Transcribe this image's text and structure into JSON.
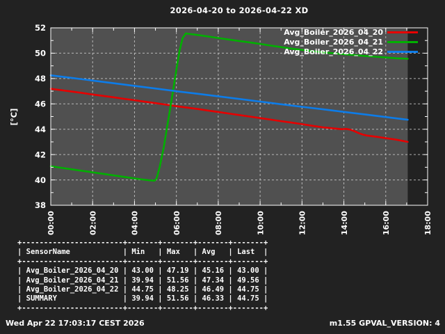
{
  "title": "2026-04-20 to 2026-04-22 XD",
  "colors": {
    "page_bg": "#222222",
    "plot_bg": "#505050",
    "grid": "#c9c9c9",
    "border": "#ffffff",
    "text": "#ffffff",
    "series_red": "#e60000",
    "series_green": "#00b000",
    "series_blue": "#0d7ce8"
  },
  "chart_data": {
    "type": "line",
    "title": "2026-04-20 to 2026-04-22 XD",
    "xlabel": "",
    "ylabel": "[°C]",
    "x_unit": "hours",
    "xlim": [
      0,
      18
    ],
    "ylim": [
      38,
      52
    ],
    "xtick_labels": [
      "00:00",
      "02:00",
      "04:00",
      "06:00",
      "08:00",
      "10:00",
      "12:00",
      "14:00",
      "16:00",
      "18:00"
    ],
    "xtick_hours": [
      0,
      2,
      4,
      6,
      8,
      10,
      12,
      14,
      16,
      18
    ],
    "yticks": [
      38,
      40,
      42,
      44,
      46,
      48,
      50,
      52
    ],
    "grid": true,
    "legend_position": "top-right",
    "data_end_hour": 17.05,
    "series": [
      {
        "name": "Avg_Boiler_2026_04_20",
        "color": "#e60000",
        "points": [
          [
            0,
            47.19
          ],
          [
            0.5,
            47.08
          ],
          [
            1,
            46.97
          ],
          [
            1.5,
            46.86
          ],
          [
            2,
            46.74
          ],
          [
            2.5,
            46.63
          ],
          [
            3,
            46.52
          ],
          [
            3.5,
            46.4
          ],
          [
            4,
            46.29
          ],
          [
            4.5,
            46.17
          ],
          [
            5,
            46.06
          ],
          [
            5.5,
            45.94
          ],
          [
            6,
            45.82
          ],
          [
            6.5,
            45.71
          ],
          [
            7,
            45.6
          ],
          [
            7.5,
            45.48
          ],
          [
            8,
            45.36
          ],
          [
            8.5,
            45.24
          ],
          [
            9,
            45.12
          ],
          [
            9.5,
            45.0
          ],
          [
            10,
            44.88
          ],
          [
            10.5,
            44.76
          ],
          [
            11,
            44.64
          ],
          [
            11.5,
            44.52
          ],
          [
            12,
            44.4
          ],
          [
            12.5,
            44.27
          ],
          [
            13,
            44.15
          ],
          [
            13.5,
            44.07
          ],
          [
            13.9,
            44.0
          ],
          [
            14.1,
            44.03
          ],
          [
            14.3,
            43.97
          ],
          [
            14.5,
            43.85
          ],
          [
            14.7,
            43.7
          ],
          [
            14.9,
            43.58
          ],
          [
            15.1,
            43.5
          ],
          [
            15.5,
            43.42
          ],
          [
            16,
            43.3
          ],
          [
            16.5,
            43.18
          ],
          [
            17.05,
            43.0
          ]
        ]
      },
      {
        "name": "Avg_Boiler_2026_04_21",
        "color": "#00b000",
        "points": [
          [
            0,
            41.08
          ],
          [
            0.5,
            40.96
          ],
          [
            1,
            40.84
          ],
          [
            1.5,
            40.72
          ],
          [
            2,
            40.6
          ],
          [
            2.5,
            40.48
          ],
          [
            3,
            40.36
          ],
          [
            3.5,
            40.24
          ],
          [
            4,
            40.12
          ],
          [
            4.4,
            40.03
          ],
          [
            4.7,
            39.97
          ],
          [
            4.95,
            39.94
          ],
          [
            5.05,
            40.1
          ],
          [
            5.2,
            41.0
          ],
          [
            5.4,
            42.6
          ],
          [
            5.6,
            44.6
          ],
          [
            5.8,
            46.6
          ],
          [
            6.0,
            48.7
          ],
          [
            6.15,
            50.2
          ],
          [
            6.3,
            51.2
          ],
          [
            6.45,
            51.56
          ],
          [
            6.7,
            51.5
          ],
          [
            7,
            51.44
          ],
          [
            7.5,
            51.32
          ],
          [
            8,
            51.2
          ],
          [
            8.5,
            51.08
          ],
          [
            9,
            50.96
          ],
          [
            9.5,
            50.85
          ],
          [
            10,
            50.73
          ],
          [
            10.5,
            50.6
          ],
          [
            11,
            50.48
          ],
          [
            11.5,
            50.36
          ],
          [
            12,
            50.26
          ],
          [
            12.5,
            50.16
          ],
          [
            13,
            50.07
          ],
          [
            13.5,
            49.99
          ],
          [
            14,
            49.92
          ],
          [
            14.5,
            49.85
          ],
          [
            15,
            49.78
          ],
          [
            15.5,
            49.72
          ],
          [
            16,
            49.66
          ],
          [
            16.5,
            49.6
          ],
          [
            17.05,
            49.56
          ]
        ]
      },
      {
        "name": "Avg_Boiler_2026_04_22",
        "color": "#0d7ce8",
        "points": [
          [
            0,
            48.25
          ],
          [
            1,
            48.05
          ],
          [
            2,
            47.84
          ],
          [
            3,
            47.63
          ],
          [
            4,
            47.42
          ],
          [
            5,
            47.21
          ],
          [
            6,
            47.0
          ],
          [
            7,
            46.8
          ],
          [
            8,
            46.6
          ],
          [
            9,
            46.39
          ],
          [
            10,
            46.18
          ],
          [
            11,
            45.97
          ],
          [
            12,
            45.77
          ],
          [
            13,
            45.57
          ],
          [
            14,
            45.37
          ],
          [
            15,
            45.17
          ],
          [
            16,
            44.96
          ],
          [
            16.5,
            44.86
          ],
          [
            17.05,
            44.75
          ]
        ]
      }
    ]
  },
  "table": {
    "headers": [
      "SensorName",
      "Min",
      "Max",
      "Avg",
      "Last"
    ],
    "rows": [
      [
        "Avg_Boiler_2026_04_20",
        "43.00",
        "47.19",
        "45.16",
        "43.00"
      ],
      [
        "Avg_Boiler_2026_04_21",
        "39.94",
        "51.56",
        "47.34",
        "49.56"
      ],
      [
        "Avg_Boiler_2026_04_22",
        "44.75",
        "48.25",
        "46.49",
        "44.75"
      ],
      [
        "SUMMARY",
        "39.94",
        "51.56",
        "46.33",
        "44.75"
      ]
    ]
  },
  "footer": {
    "left": "Wed Apr 22 17:03:17 CEST 2026",
    "right": "m1.55 GPVAL_VERSION: 4"
  }
}
